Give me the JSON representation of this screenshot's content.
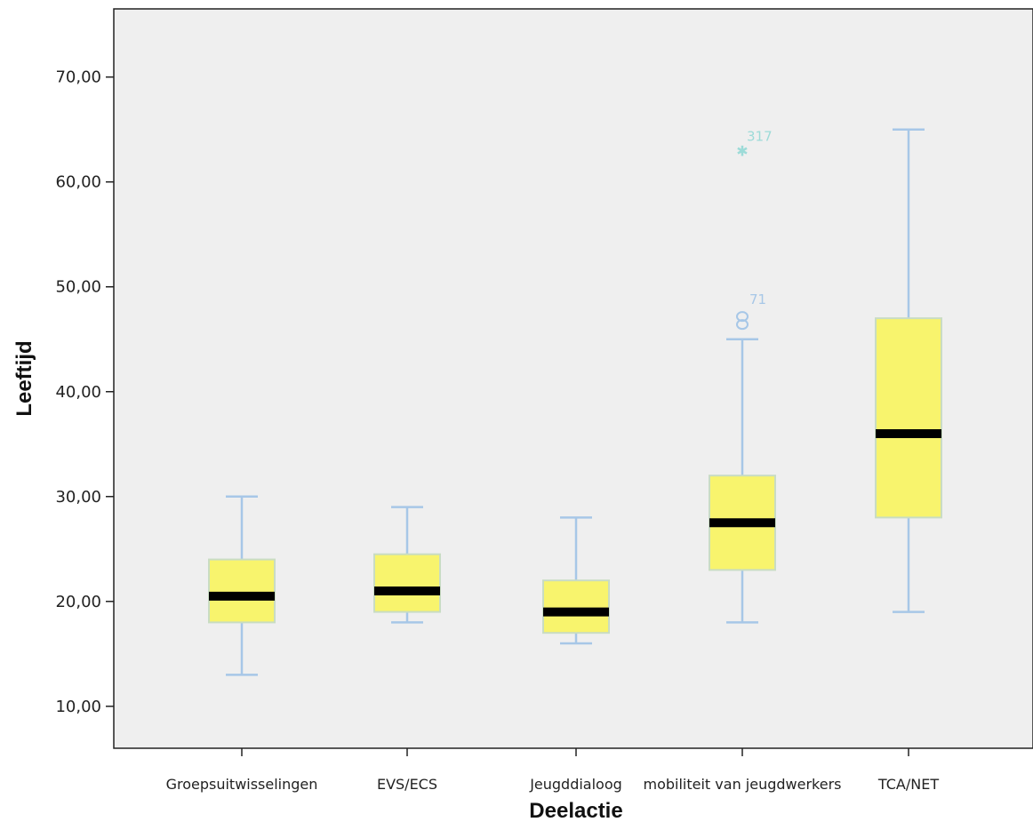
{
  "chart_data": {
    "type": "boxplot",
    "xlabel": "Deelactie",
    "ylabel": "Leeftijd",
    "ylim": [
      6,
      76.5
    ],
    "yticks": [
      10,
      20,
      30,
      40,
      50,
      60,
      70
    ],
    "ytick_labels": [
      "10,00",
      "20,00",
      "30,00",
      "40,00",
      "50,00",
      "60,00",
      "70,00"
    ],
    "grid": false,
    "categories": [
      "Groepsuitwisselingen",
      "EVS/ECS",
      "Jeugddialoog",
      "mobiliteit van jeugdwerkers",
      "TCA/NET"
    ],
    "boxes": [
      {
        "min": 13,
        "q1": 18,
        "median": 20.5,
        "q3": 24,
        "max": 30,
        "outliers": []
      },
      {
        "min": 18,
        "q1": 19,
        "median": 21,
        "q3": 24.5,
        "max": 29,
        "outliers": []
      },
      {
        "min": 16,
        "q1": 17,
        "median": 19,
        "q3": 22,
        "max": 28,
        "outliers": []
      },
      {
        "min": 18,
        "q1": 23,
        "median": 27.5,
        "q3": 32,
        "max": 45,
        "outliers": [
          {
            "value": 47,
            "marker": "circle",
            "label": "71"
          },
          {
            "value": 63,
            "marker": "star",
            "label": "317"
          }
        ]
      },
      {
        "min": 19,
        "q1": 28,
        "median": 36,
        "q3": 47,
        "max": 65,
        "outliers": []
      }
    ],
    "colors": {
      "plot_background": "#efefef",
      "box_fill": "#f8f46d",
      "box_border": "#c9dcc3",
      "median": "#000000",
      "whisker": "#a7c7e7",
      "outlier_circle": "#a7c7e7",
      "outlier_star": "#9ddbd8",
      "axis": "#222222"
    }
  }
}
